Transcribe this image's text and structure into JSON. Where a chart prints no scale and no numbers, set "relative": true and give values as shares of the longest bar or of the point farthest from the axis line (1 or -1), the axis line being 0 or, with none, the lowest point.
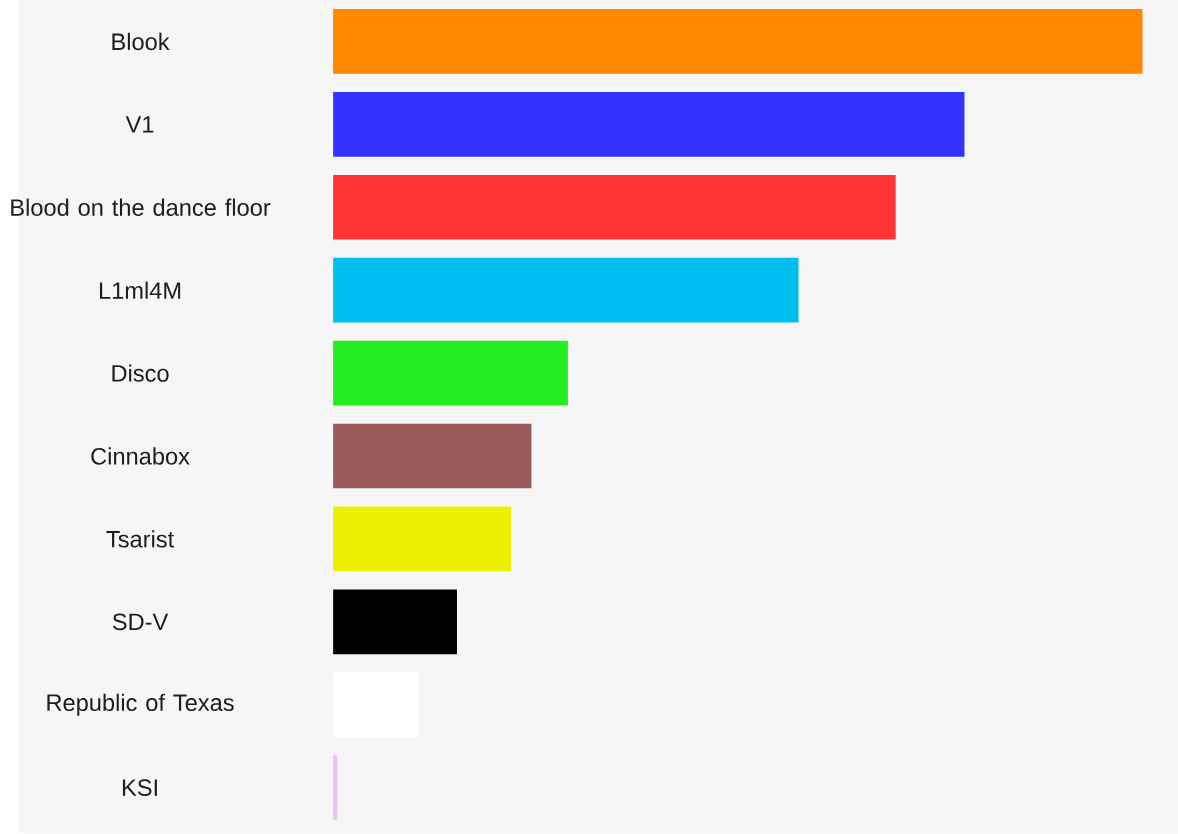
{
  "chart_data": {
    "type": "bar",
    "orientation": "horizontal",
    "relative": true,
    "categories": [
      "Blook",
      "V1",
      "Blood on the dance floor",
      "L1ml4M",
      "Disco",
      "Cinnabox",
      "Tsarist",
      "SD-V",
      "Republic of Texas",
      "KSI"
    ],
    "values": [
      1,
      0.78,
      0.695,
      0.575,
      0.29,
      0.245,
      0.22,
      0.153,
      0.105,
      0.005
    ],
    "colors": [
      "#ff8800",
      "#3333ff",
      "#ff3333",
      "#00bff0",
      "#22ee22",
      "#985a5a",
      "#eeee00",
      "#000000",
      "#ffffff",
      "#f0c0f0"
    ]
  }
}
